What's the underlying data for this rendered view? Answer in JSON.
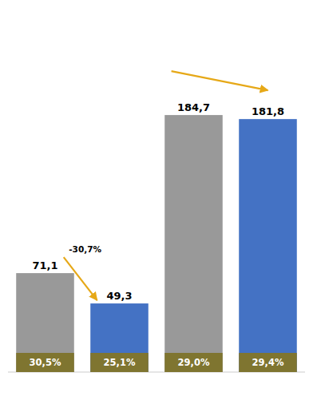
{
  "chart_data": {
    "type": "bar",
    "categories": [
      null,
      null,
      null,
      null
    ],
    "values": [
      71.1,
      49.3,
      184.7,
      181.8
    ],
    "value_labels": [
      "71,1",
      "49,3",
      "184,7",
      "181,8"
    ],
    "colors": [
      "#999999",
      "#4472c4",
      "#999999",
      "#4472c4"
    ],
    "share_labels": [
      "30,5%",
      "25,1%",
      "29,0%",
      "29,4%"
    ],
    "annotations": [
      "-30,7%"
    ],
    "ylim": [
      0,
      210
    ],
    "data_labels": true,
    "tick_labels": false
  }
}
